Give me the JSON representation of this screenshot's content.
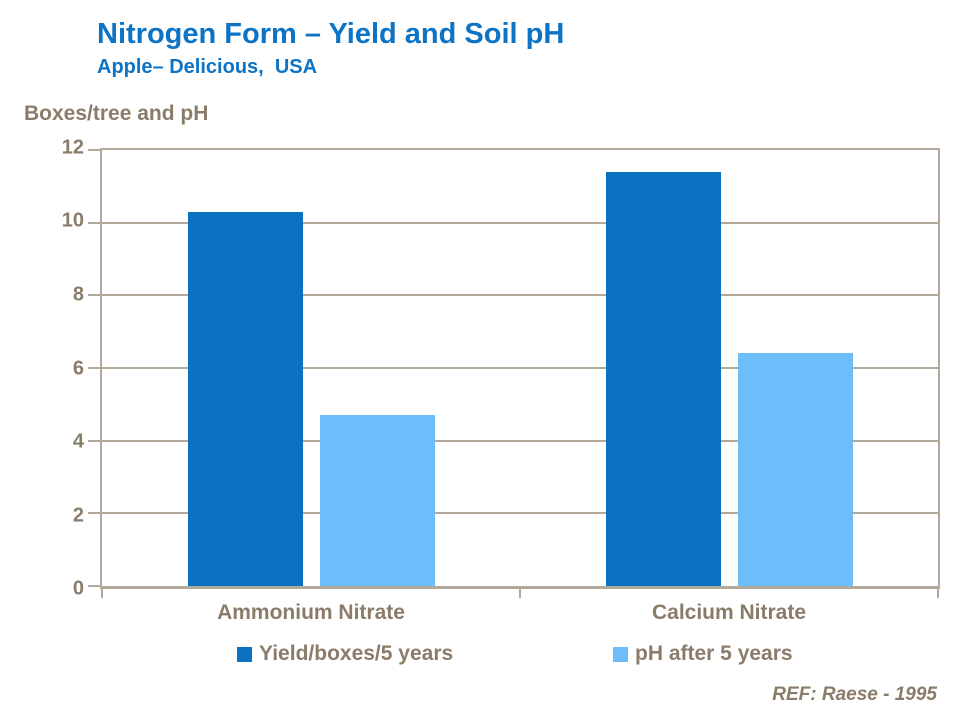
{
  "slide": {
    "title": "Nitrogen Form – Yield and Soil pH",
    "subtitle": "Apple– Delicious,  USA",
    "ref_note": "REF: Raese - 1995"
  },
  "colors": {
    "title_blue": "#0D74C5",
    "text_brown": "#8A7C69",
    "gridline": "#B2A99B",
    "series1_dark_blue": "#0A72C0",
    "series2_light_blue": "#6CBDF9",
    "background": "#FFFFFF"
  },
  "chart_data": {
    "type": "bar",
    "title": "Nitrogen Form – Yield and Soil pH",
    "subtitle": "Apple– Delicious, USA",
    "ylabel": "Boxes/tree and pH",
    "xlabel": "",
    "categories": [
      "Ammonium Nitrate",
      "Calcium Nitrate"
    ],
    "series": [
      {
        "name": "Yield/boxes/5 years",
        "color": "#0A72C0",
        "values": [
          10.3,
          11.4
        ]
      },
      {
        "name": "pH after 5 years",
        "color": "#6CBDF9",
        "values": [
          4.7,
          6.4
        ]
      }
    ],
    "ylim": [
      0,
      12
    ],
    "yticks": [
      0,
      2,
      4,
      6,
      8,
      10,
      12
    ],
    "grid": "horizontal",
    "legend_position": "bottom",
    "annotation": "REF: Raese - 1995"
  }
}
